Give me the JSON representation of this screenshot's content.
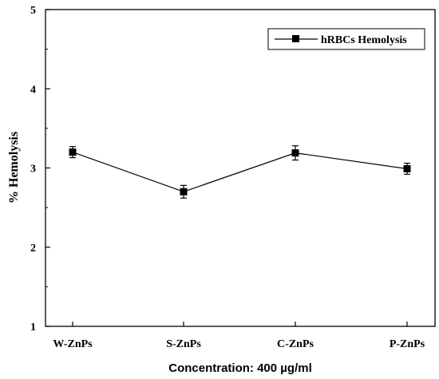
{
  "chart_data": {
    "type": "line",
    "title": "",
    "xlabel": "Concentration: 400 µg/ml",
    "ylabel": "% Hemolysis",
    "categories": [
      "W-ZnPs",
      "S-ZnPs",
      "C-ZnPs",
      "P-ZnPs"
    ],
    "ylim": [
      1,
      5
    ],
    "yticks": [
      1,
      2,
      3,
      4,
      5
    ],
    "grid": false,
    "legend_position": "top-right",
    "series": [
      {
        "name": "hRBCs Hemolysis",
        "values": [
          3.2,
          2.7,
          3.19,
          2.99
        ],
        "errors": [
          0.07,
          0.08,
          0.09,
          0.07
        ],
        "color": "#000000",
        "marker": "square"
      }
    ]
  }
}
